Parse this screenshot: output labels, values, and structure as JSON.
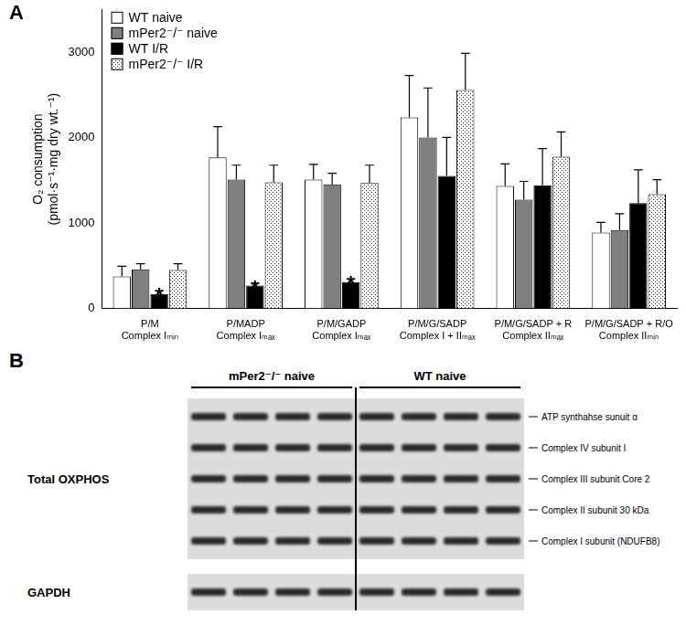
{
  "chart_data": {
    "type": "bar",
    "title": "A",
    "y_label": [
      "O₂ consumption",
      "(pmol·s⁻¹·mg dry wt.⁻¹)"
    ],
    "categories": [
      [
        "P/M",
        "Complex Iₘᵢₙ"
      ],
      [
        "P/MADP",
        "Complex Iₘₐₓ"
      ],
      [
        "P/M/GADP",
        "Complex Iₘₐₓ"
      ],
      [
        "P/M/G/SADP",
        "Complex I + IIₘₐₓ"
      ],
      [
        "P/M/G/SADP + R",
        "Complex IIₘₐₓ"
      ],
      [
        "P/M/G/SADP + R/O",
        "Complex IIₘᵢₙ"
      ]
    ],
    "series": [
      {
        "name": "WT naive",
        "color": "#ffffff",
        "values": [
          375,
          1770,
          1510,
          2240,
          1435,
          890
        ],
        "errors": [
          120,
          360,
          180,
          490,
          260,
          120
        ]
      },
      {
        "name": "mPer2⁻/⁻ naive",
        "color": "#7f7f7f",
        "values": [
          460,
          1510,
          1455,
          2005,
          1275,
          920
        ],
        "errors": [
          65,
          170,
          130,
          580,
          215,
          190
        ]
      },
      {
        "name": "WT I/R",
        "color": "#000000",
        "values": [
          170,
          268,
          310,
          1555,
          1445,
          1235
        ],
        "errors": [
          35,
          30,
          35,
          450,
          430,
          390
        ],
        "annotations": [
          "*",
          "*",
          "*",
          null,
          null,
          null
        ]
      },
      {
        "name": "mPer2⁻/⁻ I/R",
        "color": "#ffffff",
        "marker": "dots",
        "values": [
          450,
          1480,
          1470,
          2560,
          1780,
          1340
        ],
        "errors": [
          75,
          200,
          210,
          430,
          290,
          170
        ]
      }
    ],
    "ylim": [
      0,
      3500
    ],
    "yticks": [
      0,
      1000,
      2000,
      3000
    ],
    "grid": false,
    "legend": "upper left"
  },
  "blot": {
    "title": "B",
    "groups": [
      {
        "label": "mPer2⁻/⁻ naive",
        "lanes": 4
      },
      {
        "label": "WT naive",
        "lanes": 4
      }
    ],
    "panels": [
      {
        "label": "Total OXPHOS",
        "bands": 5,
        "band_labels": [
          "ATP synthahse sunuit α",
          "Complex IV subunit I",
          "Complex III subunit Core 2",
          "Complex II subunit 30 kDa",
          "Complex I subunit (NDUFB8)"
        ]
      },
      {
        "label": "GAPDH",
        "bands": 1,
        "band_labels": []
      }
    ]
  }
}
